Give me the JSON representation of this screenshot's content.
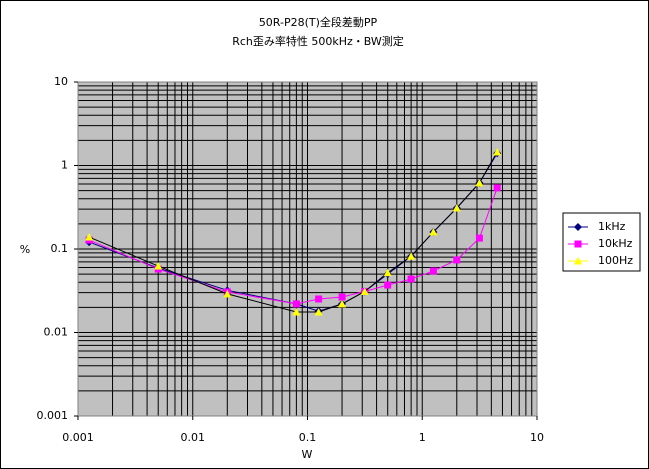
{
  "chart_data": {
    "type": "line",
    "title": "50R-P28(T)全段差動PP",
    "subtitle": "Rch歪み率特性  500kHz・BW測定",
    "x_label": "W",
    "y_label": "%",
    "x": [
      0.00125,
      0.005,
      0.02,
      0.08,
      0.125,
      0.2,
      0.315,
      0.5,
      0.8,
      1.25,
      2,
      3.15,
      4.5
    ],
    "series": [
      {
        "name": "1kHz",
        "color": "#000080",
        "marker": "diamond",
        "values": [
          0.121,
          0.059,
          0.032,
          0.022,
          0.018,
          0.022,
          0.031,
          0.05,
          0.082,
          0.16,
          0.31,
          0.62,
          1.4
        ]
      },
      {
        "name": "10kHz",
        "color": "#ff00ff",
        "marker": "square",
        "values": [
          0.128,
          0.0575,
          0.0306,
          0.022,
          0.0252,
          0.0266,
          0.031,
          0.037,
          0.0437,
          0.0545,
          0.074,
          0.135,
          0.54
        ]
      },
      {
        "name": "100Hz",
        "color": "#ffff00",
        "marker": "triangle",
        "values": [
          0.139,
          0.0625,
          0.029,
          0.0176,
          0.0176,
          0.022,
          0.031,
          0.052,
          0.082,
          0.16,
          0.31,
          0.62,
          1.45
        ]
      }
    ],
    "xlim": [
      0.001,
      10
    ],
    "ylim": [
      0.001,
      10
    ],
    "xticks": [
      0.001,
      0.01,
      0.1,
      1,
      10
    ],
    "yticks": [
      0.001,
      0.01,
      0.1,
      1,
      10
    ],
    "xscale": "log",
    "yscale": "log",
    "grid": true,
    "minor_grid": true,
    "legend": "right"
  }
}
